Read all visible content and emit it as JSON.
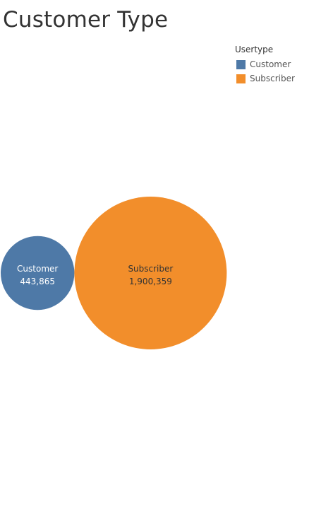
{
  "chart_data": {
    "type": "bubble",
    "title": "Customer Type",
    "legend": {
      "title": "Usertype",
      "placement": "top-right",
      "items": [
        {
          "label": "Customer",
          "color": "#4e79a7"
        },
        {
          "label": "Subscriber",
          "color": "#f28e2b"
        }
      ]
    },
    "categories": [
      "Customer",
      "Subscriber"
    ],
    "values": [
      443865,
      1900359
    ],
    "value_labels": [
      "443,865",
      "1,900,359"
    ],
    "colors": [
      "#4e79a7",
      "#f28e2b"
    ],
    "label_colors": [
      "#ffffff",
      "#333333"
    ],
    "grid": false
  }
}
